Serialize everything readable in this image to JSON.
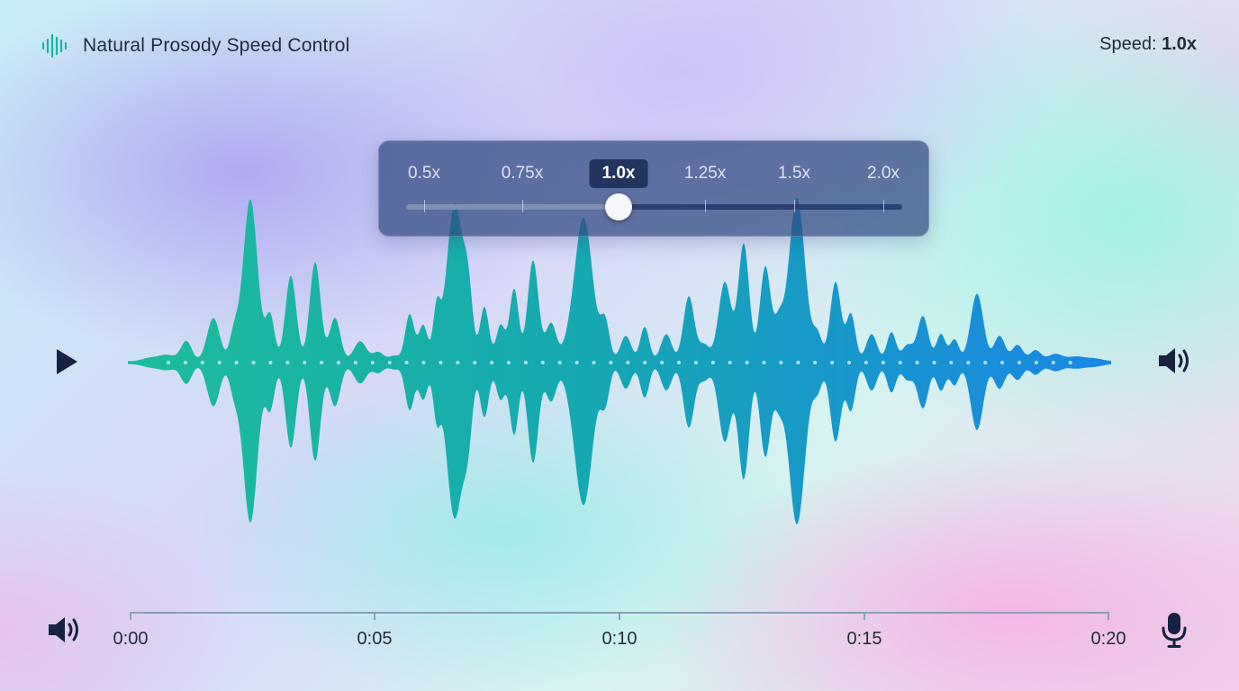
{
  "app": {
    "title": "Natural Prosody Speed Control",
    "logo_icon": "waveform-icon",
    "accent_color": "#19b3a0"
  },
  "speed_readout": {
    "label": "Speed:",
    "value": "1.0x"
  },
  "speed_selector": {
    "options": [
      "0.5x",
      "0.75x",
      "1.0x",
      "1.25x",
      "1.5x",
      "2.0x"
    ],
    "selected_index": 2,
    "selected_value": "1.0x"
  },
  "player": {
    "play_icon": "play-icon",
    "volume_icon": "speaker-volume-icon",
    "mic_icon": "microphone-icon",
    "waveform_colors": {
      "start": "#1dbd9a",
      "end": "#1a86e6"
    }
  },
  "timeline": {
    "labels": [
      "0:00",
      "0:05",
      "0:10",
      "0:15",
      "0:20"
    ]
  }
}
